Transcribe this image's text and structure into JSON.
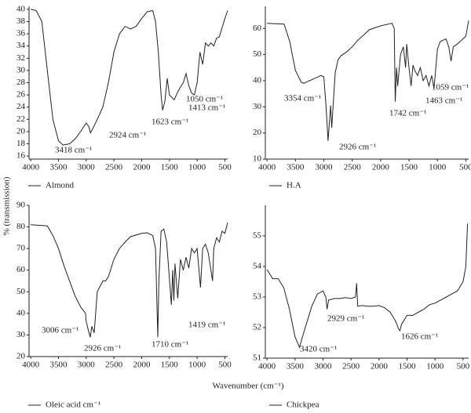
{
  "ylabel": "% (transmission)",
  "xlabel": "Wavenumber (cm⁻¹)",
  "chart_data": [
    {
      "type": "line",
      "xlim": [
        4030,
        450
      ],
      "xticks": [
        4000,
        3500,
        3000,
        2500,
        2000,
        1500,
        1000,
        500
      ],
      "ylim": [
        15.5,
        40.5
      ],
      "yticks": [
        16,
        18,
        20,
        22,
        24,
        26,
        28,
        30,
        32,
        34,
        36,
        38,
        40
      ],
      "x": [
        4000,
        3900,
        3800,
        3700,
        3600,
        3500,
        3418,
        3300,
        3200,
        3100,
        3000,
        2950,
        2924,
        2880,
        2800,
        2700,
        2600,
        2500,
        2400,
        2300,
        2200,
        2100,
        2000,
        1900,
        1800,
        1750,
        1700,
        1650,
        1623,
        1580,
        1540,
        1500,
        1413,
        1350,
        1300,
        1250,
        1200,
        1150,
        1100,
        1050,
        1000,
        950,
        900,
        850,
        800,
        750,
        700,
        650,
        600,
        550,
        500,
        450
      ],
      "series": [
        {
          "name": "Almond",
          "color": "#222222",
          "values": [
            40,
            39.8,
            38,
            30,
            22,
            18.5,
            17.8,
            18,
            18.8,
            20,
            21.4,
            20.8,
            19.8,
            20.5,
            22,
            24,
            28,
            33,
            36,
            37.2,
            36.8,
            37.2,
            38.5,
            39.6,
            39.8,
            38,
            33,
            26,
            23.5,
            25,
            28.7,
            26,
            25.2,
            26.5,
            27.3,
            28,
            29.5,
            27.5,
            26.3,
            26,
            28,
            33,
            31,
            34.5,
            34,
            34.5,
            34,
            35.3,
            35.5,
            37,
            38.5,
            39.8
          ]
        }
      ],
      "annotations": [
        {
          "text": "3418 cm⁻¹"
        },
        {
          "text": "2924 cm⁻¹"
        },
        {
          "text": "1623 cm⁻¹"
        },
        {
          "text": "1413 cm⁻¹"
        },
        {
          "text": "1050 cm⁻¹"
        }
      ]
    },
    {
      "type": "line",
      "xlim": [
        4030,
        450
      ],
      "xticks": [
        4000,
        3500,
        3000,
        2500,
        2000,
        1500,
        1000,
        500
      ],
      "ylim": [
        10,
        68.5
      ],
      "yticks": [
        10,
        20,
        30,
        40,
        50,
        60
      ],
      "x": [
        4000,
        3700,
        3600,
        3500,
        3400,
        3354,
        3200,
        3050,
        3000,
        2960,
        2926,
        2900,
        2880,
        2860,
        2800,
        2750,
        2700,
        2600,
        2500,
        2400,
        2300,
        2200,
        2000,
        1800,
        1760,
        1742,
        1720,
        1700,
        1650,
        1600,
        1560,
        1540,
        1500,
        1463,
        1430,
        1400,
        1350,
        1300,
        1250,
        1200,
        1150,
        1100,
        1059,
        1000,
        950,
        900,
        850,
        800,
        760,
        720,
        650,
        600,
        500,
        450
      ],
      "series": [
        {
          "name": "H.A",
          "color": "#222222",
          "values": [
            62,
            61.7,
            55,
            44,
            39.5,
            39,
            40.5,
            42,
            41.5,
            30,
            17,
            25,
            30.5,
            22,
            43,
            48,
            49.5,
            51,
            53,
            55.5,
            57.5,
            59.5,
            61,
            62,
            60,
            32,
            45,
            38,
            50,
            53,
            45,
            54,
            45,
            38,
            46,
            44,
            42,
            45,
            40,
            42,
            38,
            42,
            37,
            52,
            55,
            55.5,
            56,
            53,
            47.5,
            53,
            54,
            55,
            57,
            63
          ]
        }
      ],
      "annotations": [
        {
          "text": "3354 cm⁻¹"
        },
        {
          "text": "2926 cm⁻¹"
        },
        {
          "text": "1742 cm⁻¹"
        },
        {
          "text": "1463 cm⁻¹"
        },
        {
          "text": "1059 cm⁻¹"
        }
      ]
    },
    {
      "type": "line",
      "xlim": [
        4030,
        450
      ],
      "xticks": [
        4000,
        3500,
        3000,
        2500,
        2000,
        1500,
        1000,
        500
      ],
      "ylim": [
        20,
        90
      ],
      "yticks": [
        20,
        30,
        40,
        50,
        60,
        70,
        80,
        90
      ],
      "x": [
        4000,
        3700,
        3600,
        3500,
        3400,
        3300,
        3200,
        3100,
        3010,
        3006,
        2960,
        2926,
        2900,
        2855,
        2800,
        2700,
        2650,
        2600,
        2500,
        2400,
        2300,
        2200,
        2000,
        1900,
        1800,
        1750,
        1710,
        1690,
        1650,
        1600,
        1550,
        1465,
        1440,
        1419,
        1400,
        1350,
        1300,
        1250,
        1200,
        1150,
        1100,
        1050,
        1000,
        940,
        900,
        850,
        800,
        722,
        700,
        650,
        600,
        550,
        500,
        450
      ],
      "series": [
        {
          "name": "Oleic acid cm⁻¹",
          "color": "#222222",
          "values": [
            81,
            80.5,
            76,
            70,
            62,
            55,
            48,
            43,
            40,
            37,
            32,
            29,
            34,
            31,
            50,
            55,
            55,
            57,
            65,
            70,
            73,
            75.5,
            77,
            77.3,
            76,
            70,
            29,
            55,
            78,
            79,
            73,
            44,
            60,
            46,
            63,
            47,
            65,
            60,
            66,
            61,
            70,
            68,
            70,
            52,
            70,
            72,
            68,
            55,
            70,
            75,
            73,
            78,
            77,
            82
          ]
        }
      ],
      "annotations": [
        {
          "text": "3006 cm⁻¹"
        },
        {
          "text": "2926 cm⁻¹"
        },
        {
          "text": "1710 cm⁻¹"
        },
        {
          "text": "1419 cm⁻¹"
        }
      ]
    },
    {
      "type": "line",
      "xlim": [
        4030,
        400
      ],
      "xticks": [
        4000,
        3500,
        3000,
        2500,
        2000,
        1500,
        1000,
        500
      ],
      "ylim": [
        51,
        56
      ],
      "yticks": [
        51,
        52,
        53,
        54,
        55
      ],
      "x": [
        4000,
        3900,
        3800,
        3700,
        3600,
        3500,
        3420,
        3350,
        3200,
        3100,
        3000,
        2950,
        2929,
        2900,
        2800,
        2700,
        2600,
        2500,
        2420,
        2400,
        2380,
        2300,
        2200,
        2100,
        2000,
        1900,
        1800,
        1700,
        1650,
        1626,
        1600,
        1500,
        1400,
        1300,
        1200,
        1100,
        1000,
        900,
        800,
        700,
        600,
        500,
        450,
        420
      ],
      "series": [
        {
          "name": "Chickpea",
          "color": "#222222",
          "values": [
            53.9,
            53.6,
            53.6,
            53.3,
            52.6,
            51.7,
            51.35,
            51.8,
            52.7,
            53.1,
            53.2,
            53.0,
            52.6,
            52.9,
            52.95,
            52.95,
            52.98,
            52.95,
            53.0,
            53.45,
            52.7,
            52.72,
            52.7,
            52.7,
            52.72,
            52.65,
            52.5,
            52.2,
            51.95,
            51.9,
            52.1,
            52.4,
            52.4,
            52.5,
            52.6,
            52.75,
            52.8,
            52.9,
            53,
            53.1,
            53.2,
            53.5,
            54,
            55.4
          ]
        }
      ],
      "annotations": [
        {
          "text": "3420 cm⁻¹"
        },
        {
          "text": "2929 cm⁻¹"
        },
        {
          "text": "1626 cm⁻¹"
        }
      ]
    }
  ]
}
